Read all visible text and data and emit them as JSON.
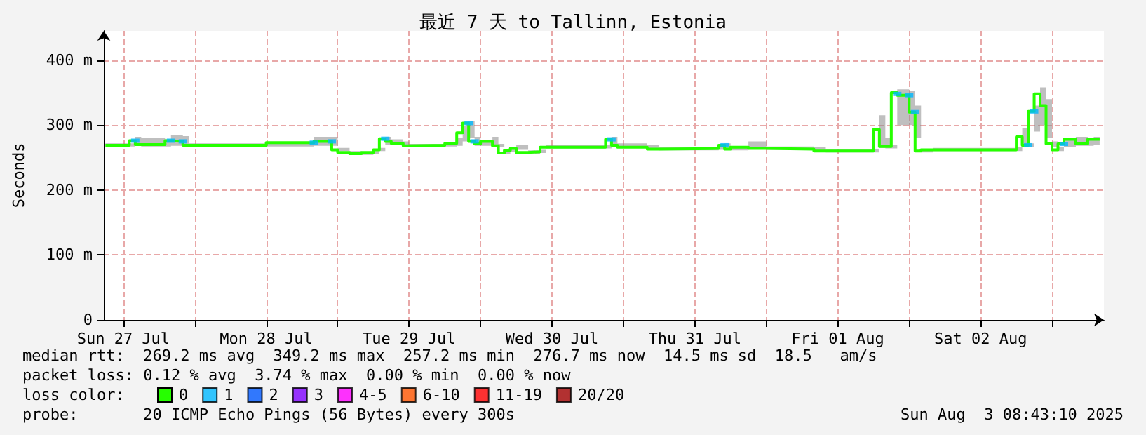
{
  "chart_data": {
    "type": "step",
    "title": "最近 7 天 to Tallinn, Estonia",
    "ylabel": "Seconds",
    "legend_title": "loss color:",
    "legend": "bottom",
    "x": [
      "2025-07-27T09:00",
      "2025-07-27T13:00",
      "2025-07-27T14:00",
      "2025-07-27T15:00",
      "2025-07-27T19:00",
      "2025-07-27T20:00",
      "2025-07-27T22:00",
      "2025-07-27T23:00",
      "2025-07-28T12:00",
      "2025-07-28T20:00",
      "2025-07-28T23:00",
      "2025-07-29T00:00",
      "2025-07-29T02:00",
      "2025-07-29T04:00",
      "2025-07-29T06:00",
      "2025-07-29T07:00",
      "2025-07-29T08:00",
      "2025-07-29T09:00",
      "2025-07-29T11:00",
      "2025-07-29T12:00",
      "2025-07-29T18:00",
      "2025-07-29T20:00",
      "2025-07-29T21:00",
      "2025-07-29T22:00",
      "2025-07-29T23:00",
      "2025-07-30T00:00",
      "2025-07-30T02:00",
      "2025-07-30T03:00",
      "2025-07-30T04:00",
      "2025-07-30T05:00",
      "2025-07-30T06:00",
      "2025-07-30T08:00",
      "2025-07-30T10:00",
      "2025-07-30T11:00",
      "2025-07-30T21:00",
      "2025-07-30T22:00",
      "2025-07-30T23:00",
      "2025-07-31T04:00",
      "2025-07-31T06:00",
      "2025-07-31T16:00",
      "2025-07-31T17:00",
      "2025-07-31T18:00",
      "2025-07-31T21:00",
      "2025-08-01T00:00",
      "2025-08-01T08:00",
      "2025-08-01T10:00",
      "2025-08-01T18:00",
      "2025-08-01T19:00",
      "2025-08-01T20:00",
      "2025-08-01T21:00",
      "2025-08-01T22:00",
      "2025-08-02T00:00",
      "2025-08-02T01:00",
      "2025-08-02T02:00",
      "2025-08-02T04:00",
      "2025-08-02T18:00",
      "2025-08-02T19:00",
      "2025-08-02T20:00",
      "2025-08-02T21:00",
      "2025-08-02T22:00",
      "2025-08-02T23:00",
      "2025-08-03T00:00",
      "2025-08-03T01:00",
      "2025-08-03T02:00",
      "2025-08-03T04:00",
      "2025-08-03T06:00",
      "2025-08-03T07:00",
      "2025-08-03T08:00"
    ],
    "series": [
      {
        "name": "0",
        "color": "#26ff00",
        "values": [
          269,
          269,
          276,
          270,
          270,
          276,
          275,
          269,
          269,
          273,
          275,
          262,
          258,
          256,
          258,
          262,
          279,
          275,
          272,
          268,
          269,
          272,
          288,
          303,
          275,
          271,
          275,
          268,
          257,
          261,
          264,
          258,
          259,
          266,
          266,
          278,
          269,
          266,
          263,
          264,
          269,
          263,
          266,
          264,
          263,
          260,
          260,
          293,
          267,
          267,
          350,
          346,
          320,
          260,
          262,
          262,
          282,
          269,
          321,
          348,
          330,
          271,
          262,
          271,
          278,
          271,
          278,
          278
        ],
        "lower": [
          267,
          267,
          268,
          267,
          267,
          268,
          268,
          267,
          267,
          268,
          268,
          260,
          256,
          254,
          256,
          260,
          270,
          272,
          270,
          266,
          267,
          268,
          275,
          280,
          268,
          268,
          270,
          266,
          255,
          259,
          262,
          256,
          257,
          264,
          264,
          268,
          267,
          264,
          261,
          262,
          264,
          261,
          264,
          262,
          261,
          258,
          258,
          265,
          264,
          264,
          300,
          300,
          280,
          258,
          260,
          260,
          266,
          266,
          290,
          300,
          280,
          266,
          260,
          266,
          268,
          268,
          270,
          272
        ],
        "upper": [
          272,
          272,
          282,
          280,
          278,
          285,
          283,
          272,
          272,
          282,
          282,
          265,
          260,
          258,
          260,
          265,
          282,
          278,
          275,
          271,
          272,
          280,
          298,
          306,
          282,
          275,
          282,
          271,
          260,
          264,
          270,
          261,
          262,
          269,
          270,
          282,
          272,
          269,
          266,
          267,
          272,
          266,
          275,
          267,
          266,
          263,
          263,
          315,
          280,
          270,
          355,
          352,
          330,
          263,
          265,
          266,
          295,
          272,
          330,
          358,
          340,
          275,
          266,
          278,
          282,
          278,
          282,
          282
        ]
      },
      {
        "name": "1",
        "color": "#00b8ff",
        "type": "scatter",
        "marker": "square",
        "x": [
          "2025-07-27T14:00",
          "2025-07-27T20:00",
          "2025-07-27T22:00",
          "2025-07-28T20:00",
          "2025-07-28T23:00",
          "2025-07-29T08:00",
          "2025-07-29T22:00",
          "2025-07-29T23:00",
          "2025-07-30T22:00",
          "2025-07-31T17:00",
          "2025-08-01T22:00",
          "2025-08-02T00:00",
          "2025-08-02T01:00",
          "2025-08-02T20:00",
          "2025-08-02T21:00",
          "2025-08-03T02:00"
        ],
        "values": [
          276,
          276,
          275,
          273,
          275,
          279,
          303,
          275,
          278,
          269,
          348,
          346,
          320,
          269,
          321,
          271
        ]
      },
      {
        "name": "2",
        "color": "#0059ff",
        "type": "scatter",
        "values": [
          null,
          null,
          null,
          null,
          null,
          null,
          null,
          null,
          null,
          null,
          null,
          null,
          null,
          null,
          null,
          null,
          null,
          null,
          null,
          null,
          null,
          null,
          null,
          null,
          null,
          null,
          null,
          null,
          null,
          null,
          null,
          null,
          null,
          null,
          null,
          null,
          null,
          null,
          null,
          null,
          null,
          null,
          null,
          null,
          null,
          null,
          null,
          null,
          null,
          null,
          null,
          null,
          null,
          null,
          null,
          null,
          null,
          null,
          null,
          null,
          null,
          null,
          null,
          null,
          null,
          null,
          null,
          null
        ]
      },
      {
        "name": "3",
        "color": "#7e00ff",
        "type": "scatter",
        "values": [
          null,
          null,
          null,
          null,
          null,
          null,
          null,
          null,
          null,
          null,
          null,
          null,
          null,
          null,
          null,
          null,
          null,
          null,
          null,
          null,
          null,
          null,
          null,
          null,
          null,
          null,
          null,
          null,
          null,
          null,
          null,
          null,
          null,
          null,
          null,
          null,
          null,
          null,
          null,
          null,
          null,
          null,
          null,
          null,
          null,
          null,
          null,
          null,
          null,
          null,
          null,
          null,
          null,
          null,
          null,
          null,
          null,
          null,
          null,
          null,
          null,
          null,
          null,
          null,
          null,
          null,
          null,
          null
        ]
      },
      {
        "name": "4-5",
        "color": "#ff00ff",
        "type": "scatter",
        "values": [
          null,
          null,
          null,
          null,
          null,
          null,
          null,
          null,
          null,
          null,
          null,
          null,
          null,
          null,
          null,
          null,
          null,
          null,
          null,
          null,
          null,
          null,
          null,
          null,
          null,
          null,
          null,
          null,
          null,
          null,
          null,
          null,
          null,
          null,
          null,
          null,
          null,
          null,
          null,
          null,
          null,
          null,
          null,
          null,
          null,
          null,
          null,
          null,
          null,
          null,
          null,
          null,
          null,
          null,
          null,
          null,
          null,
          null,
          null,
          null,
          null,
          null,
          null,
          null,
          null,
          null,
          null,
          null
        ]
      },
      {
        "name": "6-10",
        "color": "#ff5500",
        "type": "scatter",
        "values": [
          null,
          null,
          null,
          null,
          null,
          null,
          null,
          null,
          null,
          null,
          null,
          null,
          null,
          null,
          null,
          null,
          null,
          null,
          null,
          null,
          null,
          null,
          null,
          null,
          null,
          null,
          null,
          null,
          null,
          null,
          null,
          null,
          null,
          null,
          null,
          null,
          null,
          null,
          null,
          null,
          null,
          null,
          null,
          null,
          null,
          null,
          null,
          null,
          null,
          null,
          null,
          null,
          null,
          null,
          null,
          null,
          null,
          null,
          null,
          null,
          null,
          null,
          null,
          null,
          null,
          null,
          null,
          null
        ]
      },
      {
        "name": "11-19",
        "color": "#ff0000",
        "type": "scatter",
        "values": [
          null,
          null,
          null,
          null,
          null,
          null,
          null,
          null,
          null,
          null,
          null,
          null,
          null,
          null,
          null,
          null,
          null,
          null,
          null,
          null,
          null,
          null,
          null,
          null,
          null,
          null,
          null,
          null,
          null,
          null,
          null,
          null,
          null,
          null,
          null,
          null,
          null,
          null,
          null,
          null,
          null,
          null,
          null,
          null,
          null,
          null,
          null,
          null,
          null,
          null,
          null,
          null,
          null,
          null,
          null,
          null,
          null,
          null,
          null,
          null,
          null,
          null,
          null,
          null,
          null,
          null,
          null,
          null
        ]
      },
      {
        "name": "20/20",
        "color": "#a10000",
        "type": "scatter",
        "values": [
          null,
          null,
          null,
          null,
          null,
          null,
          null,
          null,
          null,
          null,
          null,
          null,
          null,
          null,
          null,
          null,
          null,
          null,
          null,
          null,
          null,
          null,
          null,
          null,
          null,
          null,
          null,
          null,
          null,
          null,
          null,
          null,
          null,
          null,
          null,
          null,
          null,
          null,
          null,
          null,
          null,
          null,
          null,
          null,
          null,
          null,
          null,
          null,
          null,
          null,
          null,
          null,
          null,
          null,
          null,
          null,
          null,
          null,
          null,
          null,
          null,
          null,
          null,
          null,
          null,
          null,
          null,
          null
        ]
      }
    ],
    "xlim": [
      "2025-07-27T08:43",
      "2025-08-03T08:43"
    ],
    "xticks": [
      {
        "value": "2025-07-27T12:00",
        "label": "Sun 27 Jul"
      },
      {
        "value": "2025-07-28T00:00",
        "label": null
      },
      {
        "value": "2025-07-28T12:00",
        "label": "Mon 28 Jul"
      },
      {
        "value": "2025-07-29T00:00",
        "label": null
      },
      {
        "value": "2025-07-29T12:00",
        "label": "Tue 29 Jul"
      },
      {
        "value": "2025-07-30T00:00",
        "label": null
      },
      {
        "value": "2025-07-30T12:00",
        "label": "Wed 30 Jul"
      },
      {
        "value": "2025-07-31T00:00",
        "label": null
      },
      {
        "value": "2025-07-31T12:00",
        "label": "Thu 31 Jul"
      },
      {
        "value": "2025-08-01T00:00",
        "label": null
      },
      {
        "value": "2025-08-01T12:00",
        "label": "Fri 01 Aug"
      },
      {
        "value": "2025-08-02T00:00",
        "label": null
      },
      {
        "value": "2025-08-02T12:00",
        "label": "Sat 02 Aug"
      },
      {
        "value": "2025-08-03T00:00",
        "label": null
      }
    ],
    "ylim": [
      0,
      445
    ],
    "yticks": [
      0,
      {
        "value": 100,
        "label": "100 m"
      },
      {
        "value": 200,
        "label": "200 m"
      },
      {
        "value": 300,
        "label": "300 m"
      },
      {
        "value": 400,
        "label": "400 m"
      }
    ],
    "grid": true,
    "annotations": [
      "median rtt:  269.2 ms avg  349.2 ms max  257.2 ms min  276.7 ms now  14.5 ms sd  18.5   am/s",
      "packet loss: 0.12 % avg  3.74 % max  0.00 % min  0.00 % now",
      "probe:       20 ICMP Echo Pings (56 Bytes) every 300s",
      "Sun Aug  3 08:43:10 2025"
    ]
  }
}
